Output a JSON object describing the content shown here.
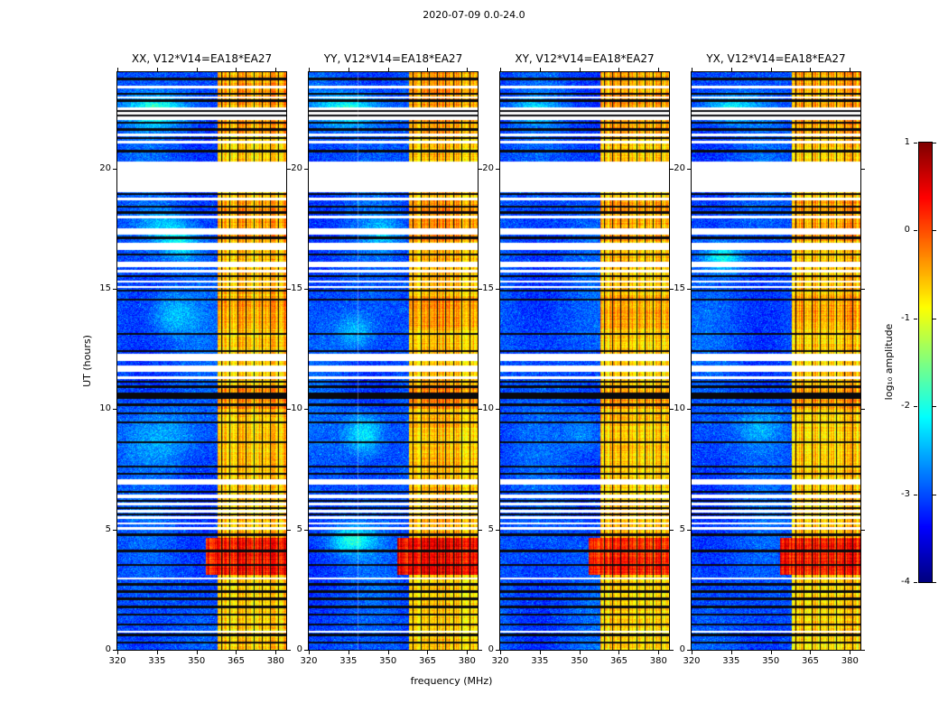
{
  "figure": {
    "title": "2020-07-09 0.0-24.0"
  },
  "chart_data": {
    "type": "heatmap",
    "title": "2020-07-09 0.0-24.0",
    "panels": [
      {
        "id": "XX",
        "title": "XX, V12*V14=EA18*EA27"
      },
      {
        "id": "YY",
        "title": "YY, V12*V14=EA18*EA27"
      },
      {
        "id": "XY",
        "title": "XY, V12*V14=EA18*EA27"
      },
      {
        "id": "YX",
        "title": "YX, V12*V14=EA18*EA27"
      }
    ],
    "x_axis": {
      "label": "frequency (MHz)",
      "range": [
        320,
        384
      ],
      "ticks": [
        320,
        335,
        350,
        365,
        380
      ]
    },
    "y_axis": {
      "label": "UT (hours)",
      "range": [
        0,
        24
      ],
      "ticks": [
        0,
        5,
        10,
        15,
        20
      ]
    },
    "colorbar": {
      "label": "log₁₀ amplitude",
      "range_log10": [
        -4,
        1
      ],
      "ticks": [
        1,
        0,
        -1,
        -2,
        -3,
        -4
      ],
      "colormap": "jet"
    },
    "content": {
      "background_log10": -3.0,
      "noise_spread": 0.6,
      "emission_band": {
        "mhz_start": 358,
        "mhz_end": 384,
        "base_log10": -1.55
      },
      "band_intensity_ut": [
        [
          0,
          3.1,
          0.3
        ],
        [
          3.1,
          4.65,
          1.25
        ],
        [
          4.65,
          5.6,
          0.4
        ],
        [
          5.6,
          8.0,
          0.35
        ],
        [
          8.0,
          10.0,
          0.35
        ],
        [
          10.0,
          11.0,
          0.6
        ],
        [
          11.0,
          13.4,
          0.35
        ],
        [
          13.4,
          14.7,
          0.55
        ],
        [
          14.7,
          17.0,
          0.4
        ],
        [
          17.0,
          18.7,
          0.55
        ],
        [
          18.7,
          21.4,
          0.35
        ],
        [
          21.4,
          24.01,
          0.55
        ]
      ],
      "band_column_null_mhz": [
        359.3,
        362.4,
        365.5,
        368.6,
        371.7,
        374.8,
        377.9,
        381.0
      ],
      "data_gap_ut": [
        [
          23.32,
          23.42
        ],
        [
          22.9,
          23.0
        ],
        [
          22.0,
          22.55
        ],
        [
          21.35,
          21.45
        ],
        [
          21.05,
          21.15
        ],
        [
          19.0,
          20.3
        ],
        [
          18.68,
          18.78
        ],
        [
          17.93,
          18.03
        ],
        [
          17.25,
          17.5
        ],
        [
          16.6,
          16.9
        ],
        [
          15.9,
          16.12
        ],
        [
          15.68,
          15.78
        ],
        [
          15.25,
          15.35
        ],
        [
          15.02,
          15.1
        ],
        [
          12.0,
          12.3
        ],
        [
          11.55,
          11.8
        ],
        [
          11.25,
          11.35
        ],
        [
          6.85,
          7.1
        ],
        [
          6.3,
          6.45
        ],
        [
          6.0,
          6.1
        ],
        [
          5.7,
          5.8
        ],
        [
          5.45,
          5.55
        ],
        [
          5.2,
          5.3
        ],
        [
          5.0,
          5.1
        ],
        [
          2.93,
          3.0
        ],
        [
          0.72,
          0.8
        ]
      ],
      "flagged_line_ut": [
        [
          23.72,
          0.04
        ],
        [
          23.1,
          0.04
        ],
        [
          22.82,
          0.04
        ],
        [
          22.38,
          0.04
        ],
        [
          22.2,
          0.04
        ],
        [
          21.9,
          0.04
        ],
        [
          21.62,
          0.04
        ],
        [
          21.27,
          0.04
        ],
        [
          20.72,
          0.04
        ],
        [
          18.93,
          0.04
        ],
        [
          18.42,
          0.04
        ],
        [
          18.17,
          0.04
        ],
        [
          17.12,
          0.04
        ],
        [
          16.42,
          0.04
        ],
        [
          15.52,
          0.04
        ],
        [
          14.93,
          0.04
        ],
        [
          14.55,
          0.04
        ],
        [
          13.12,
          0.04
        ],
        [
          12.42,
          0.04
        ],
        [
          11.15,
          0.04
        ],
        [
          10.93,
          0.04
        ],
        [
          10.55,
          0.12
        ],
        [
          10.18,
          0.04
        ],
        [
          9.82,
          0.04
        ],
        [
          9.45,
          0.04
        ],
        [
          8.62,
          0.04
        ],
        [
          7.62,
          0.04
        ],
        [
          7.32,
          0.04
        ],
        [
          6.55,
          0.04
        ],
        [
          6.2,
          0.04
        ],
        [
          5.9,
          0.04
        ],
        [
          5.62,
          0.04
        ],
        [
          4.78,
          0.04
        ],
        [
          4.1,
          0.05
        ],
        [
          3.52,
          0.04
        ],
        [
          2.72,
          0.04
        ],
        [
          2.42,
          0.04
        ],
        [
          2.12,
          0.04
        ],
        [
          1.78,
          0.04
        ],
        [
          1.45,
          0.04
        ],
        [
          1.05,
          0.04
        ],
        [
          0.62,
          0.04
        ],
        [
          0.3,
          0.04
        ]
      ],
      "ionospheric_blobs": [
        [
          0,
          22.4,
          335,
          0.45,
          8,
          1.1
        ],
        [
          1,
          22.4,
          335,
          0.45,
          8,
          1.1
        ],
        [
          2,
          22.4,
          333,
          0.35,
          6,
          0.7
        ],
        [
          3,
          22.45,
          335,
          0.4,
          7,
          0.9
        ],
        [
          0,
          16.9,
          344,
          0.5,
          5,
          0.8
        ],
        [
          0,
          13.9,
          341,
          0.6,
          6,
          0.6
        ],
        [
          1,
          9.0,
          341,
          0.6,
          5,
          0.9
        ],
        [
          1,
          4.55,
          336,
          0.4,
          6,
          1.0
        ],
        [
          1,
          13.2,
          338,
          0.5,
          5,
          0.6
        ],
        [
          3,
          16.3,
          332,
          0.4,
          5,
          0.9
        ],
        [
          3,
          9.3,
          346,
          0.6,
          6,
          0.5
        ],
        [
          0,
          8.8,
          336,
          0.8,
          9,
          0.45
        ],
        [
          2,
          9.0,
          352,
          0.6,
          5,
          0.4
        ],
        [
          0,
          17.6,
          337,
          0.5,
          6,
          0.5
        ],
        [
          1,
          17.3,
          348,
          0.5,
          5,
          0.5
        ]
      ],
      "panel_gain": [
        1.0,
        1.12,
        0.93,
        1.03
      ],
      "faint_vertical_lines": [
        {
          "panel": 1,
          "mhz": 338.5
        }
      ]
    }
  }
}
